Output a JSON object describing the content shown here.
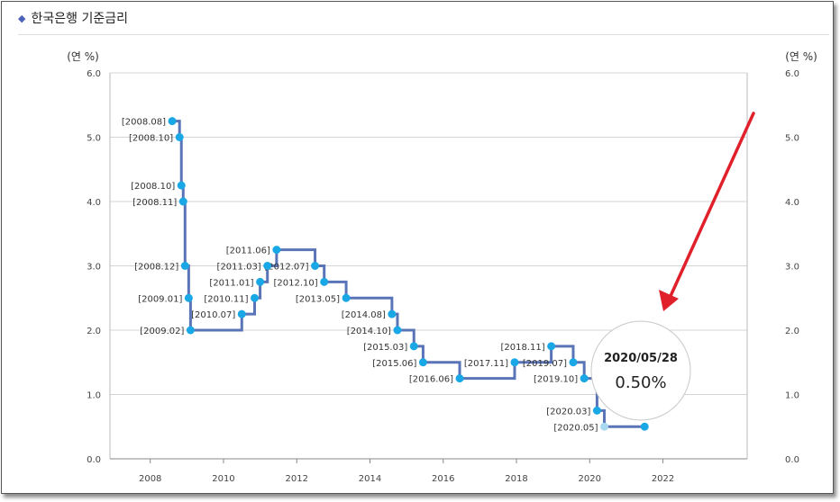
{
  "title": "한국은행 기준금리",
  "title_icon": "diamond-icon",
  "chart_data": {
    "type": "line",
    "step": true,
    "ylabel_left": "(연 %)",
    "ylabel_right": "(연 %)",
    "ylim": [
      0,
      6
    ],
    "y_ticks": [
      "0.0",
      "1.0",
      "2.0",
      "3.0",
      "4.0",
      "5.0",
      "6.0"
    ],
    "xlim": [
      2006.9,
      2024.3
    ],
    "x_ticks": [
      "2008",
      "2010",
      "2012",
      "2014",
      "2016",
      "2018",
      "2020",
      "2022"
    ],
    "grid": "horizontal",
    "line_color": "#5a74b8",
    "point_color": "#1aa7e6",
    "highlight_color": "#a8d8f0",
    "series": [
      {
        "points": [
          {
            "x": 2008.6,
            "y": 5.25,
            "label": "[2008.08]"
          },
          {
            "x": 2008.8,
            "y": 5.0,
            "label": "[2008.10]"
          },
          {
            "x": 2008.85,
            "y": 4.25,
            "label": "[2008.10]"
          },
          {
            "x": 2008.9,
            "y": 4.0,
            "label": "[2008.11]"
          },
          {
            "x": 2008.95,
            "y": 3.0,
            "label": "[2008.12]"
          },
          {
            "x": 2009.05,
            "y": 2.5,
            "label": "[2009.01]"
          },
          {
            "x": 2009.1,
            "y": 2.0,
            "label": "[2009.02]"
          },
          {
            "x": 2010.5,
            "y": 2.25,
            "label": "[2010.07]"
          },
          {
            "x": 2010.85,
            "y": 2.5,
            "label": "[2010.11]"
          },
          {
            "x": 2011.0,
            "y": 2.75,
            "label": "[2011.01]"
          },
          {
            "x": 2011.2,
            "y": 3.0,
            "label": "[2011.03]"
          },
          {
            "x": 2011.45,
            "y": 3.25,
            "label": "[2011.06]"
          },
          {
            "x": 2012.5,
            "y": 3.0,
            "label": "[2012.07]"
          },
          {
            "x": 2012.75,
            "y": 2.75,
            "label": "[2012.10]"
          },
          {
            "x": 2013.35,
            "y": 2.5,
            "label": "[2013.05]"
          },
          {
            "x": 2014.6,
            "y": 2.25,
            "label": "[2014.08]"
          },
          {
            "x": 2014.75,
            "y": 2.0,
            "label": "[2014.10]"
          },
          {
            "x": 2015.2,
            "y": 1.75,
            "label": "[2015.03]"
          },
          {
            "x": 2015.45,
            "y": 1.5,
            "label": "[2015.06]"
          },
          {
            "x": 2016.45,
            "y": 1.25,
            "label": "[2016.06]"
          },
          {
            "x": 2017.95,
            "y": 1.5,
            "label": "[2017.11]"
          },
          {
            "x": 2018.95,
            "y": 1.75,
            "label": "[2018.11]"
          },
          {
            "x": 2019.55,
            "y": 1.5,
            "label": "[2019.07]"
          },
          {
            "x": 2019.85,
            "y": 1.25,
            "label": "[2019.10]"
          },
          {
            "x": 2020.2,
            "y": 0.75,
            "label": "[2020.03]"
          },
          {
            "x": 2020.4,
            "y": 0.5,
            "label": "[2020.05]",
            "highlight": true
          },
          {
            "x": 2021.5,
            "y": 0.5,
            "label": ""
          }
        ]
      }
    ],
    "tooltip": {
      "date": "2020/05/28",
      "value": "0.50%"
    },
    "annotation_arrow_color": "#e0202a"
  }
}
